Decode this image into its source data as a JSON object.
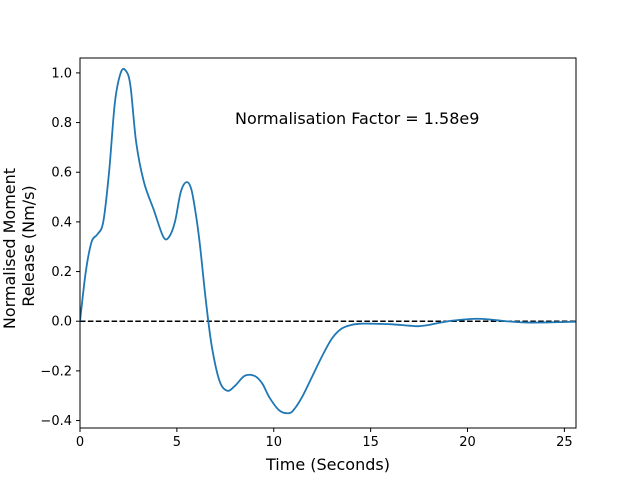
{
  "chart_data": {
    "type": "line",
    "title": "",
    "xlabel": "Time (Seconds)",
    "ylabel": "Normalised Moment Release (Nm/s)",
    "ylabel_lines": [
      "Normalised Moment",
      "Release (Nm/s)"
    ],
    "xlim": [
      0,
      25.6
    ],
    "ylim": [
      -0.43,
      1.06
    ],
    "xticks": [
      0,
      5,
      10,
      15,
      20,
      25
    ],
    "yticks": [
      -0.4,
      -0.2,
      0.0,
      0.2,
      0.4,
      0.6,
      0.8,
      1.0
    ],
    "xtick_labels": [
      "0",
      "5",
      "10",
      "15",
      "20",
      "25"
    ],
    "ytick_labels": [
      "−0.4",
      "−0.2",
      "0.0",
      "0.2",
      "0.4",
      "0.6",
      "0.8",
      "1.0"
    ],
    "grid": false,
    "annotation": "Normalisation Factor = 1.58e9",
    "reference_line": {
      "y": 0.0,
      "style": "dashed",
      "color": "#000000"
    },
    "series": [
      {
        "color": "#1f77b4",
        "x": [
          0,
          0.3,
          0.6,
          0.9,
          1.2,
          1.5,
          1.8,
          2.1,
          2.35,
          2.6,
          2.9,
          3.3,
          3.8,
          4.3,
          4.6,
          4.9,
          5.2,
          5.5,
          5.75,
          6.0,
          6.2,
          6.5,
          6.8,
          7.2,
          7.6,
          8.0,
          8.5,
          9.0,
          9.4,
          9.8,
          10.3,
          10.8,
          11.1,
          11.5,
          12.0,
          12.5,
          13.0,
          13.5,
          14.0,
          14.5,
          15.0,
          16.0,
          17.0,
          17.5,
          18.0,
          19.0,
          20.0,
          20.5,
          21.0,
          22.0,
          23.0,
          24.0,
          25.0,
          25.6
        ],
        "y": [
          0.0,
          0.2,
          0.32,
          0.35,
          0.4,
          0.6,
          0.88,
          1.0,
          1.01,
          0.95,
          0.72,
          0.56,
          0.45,
          0.34,
          0.34,
          0.4,
          0.52,
          0.56,
          0.53,
          0.42,
          0.3,
          0.08,
          -0.1,
          -0.24,
          -0.28,
          -0.26,
          -0.22,
          -0.22,
          -0.25,
          -0.31,
          -0.36,
          -0.37,
          -0.35,
          -0.3,
          -0.22,
          -0.14,
          -0.07,
          -0.03,
          -0.015,
          -0.01,
          -0.01,
          -0.012,
          -0.018,
          -0.02,
          -0.015,
          0.0,
          0.008,
          0.01,
          0.008,
          0.0,
          -0.005,
          -0.005,
          -0.003,
          -0.002
        ]
      }
    ]
  }
}
